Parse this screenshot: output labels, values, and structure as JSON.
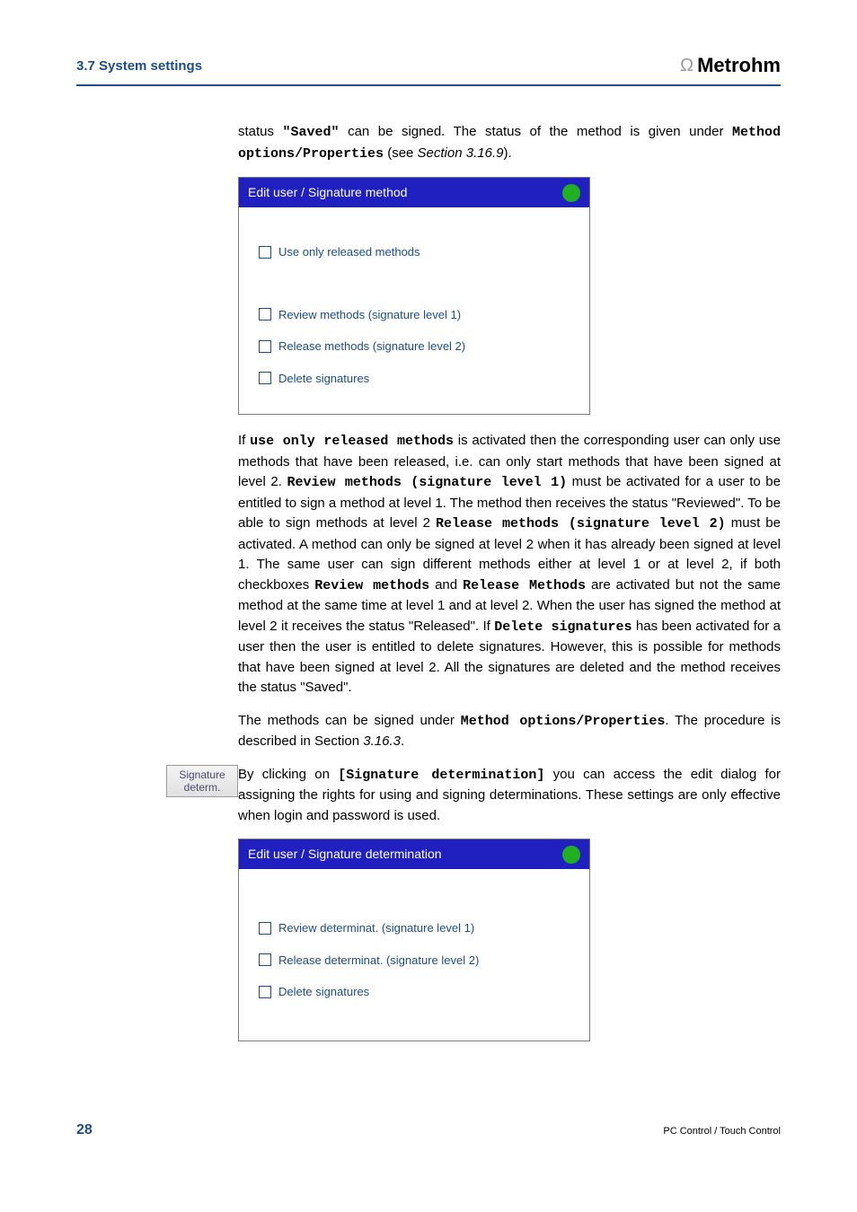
{
  "header": {
    "section_title": "3.7 System settings",
    "brand": "Metrohm"
  },
  "para1": {
    "pre": "status ",
    "status_word": "\"Saved\"",
    "mid": " can be signed. The status of the method is given under ",
    "method_opts": "Method options/Properties",
    "post1": " (see ",
    "sect_ref": "Section 3.16.9",
    "post2": ")."
  },
  "dialog1": {
    "title": "Edit user / Signature method",
    "cb1": "Use only released methods",
    "cb2": "Review methods (signature level 1)",
    "cb3": "Release methods (signature level 2)",
    "cb4": "Delete signatures"
  },
  "para2": {
    "t1": "If ",
    "b1": "use only released methods",
    "t2": " is activated then the corresponding user can only use methods that have been released, i.e. can only start methods that have been signed at level 2. ",
    "b2": "Review methods (signature level 1)",
    "t3": " must be activated for a user to be entitled to sign a method at level 1. The method then receives the status \"Reviewed\". To be able to sign methods at level 2 ",
    "b3": "Release methods (signature level 2)",
    "t4": " must be activated. A method can only be signed at level 2 when it has already been signed at level 1. The same user can sign different methods either at level 1 or at level 2, if both checkboxes ",
    "b4": "Review methods",
    "t5": " and ",
    "b5": "Release Methods",
    "t6": " are activated but not the same method at the same time at level 1 and at level 2. When the user has signed the method at level 2 it receives the status \"Released\". If ",
    "b6": "Delete signatures",
    "t7": " has been activated for a user then the user is entitled to delete signatures. However, this is possible for methods that have been signed at level 2. All the signatures are deleted and the method receives the status \"Saved\"."
  },
  "para3": {
    "t1": "The methods can be signed under ",
    "b1": "Method options/Properties",
    "t2": ". The procedure is described in Section ",
    "i1": "3.16.3",
    "t3": "."
  },
  "sidebtn": {
    "line1": "Signature",
    "line2": "determ."
  },
  "para4": {
    "t1": "By clicking on ",
    "b1": "[Signature determination]",
    "t2": " you can access the edit dialog for assigning the rights for using and signing determinations. These settings are only effective when login and password is used."
  },
  "dialog2": {
    "title": "Edit user / Signature determination",
    "cb1": "Review determinat. (signature level 1)",
    "cb2": "Release determinat. (signature level 2)",
    "cb3": "Delete signatures"
  },
  "footer": {
    "page": "28",
    "right": "PC Control / Touch Control"
  }
}
